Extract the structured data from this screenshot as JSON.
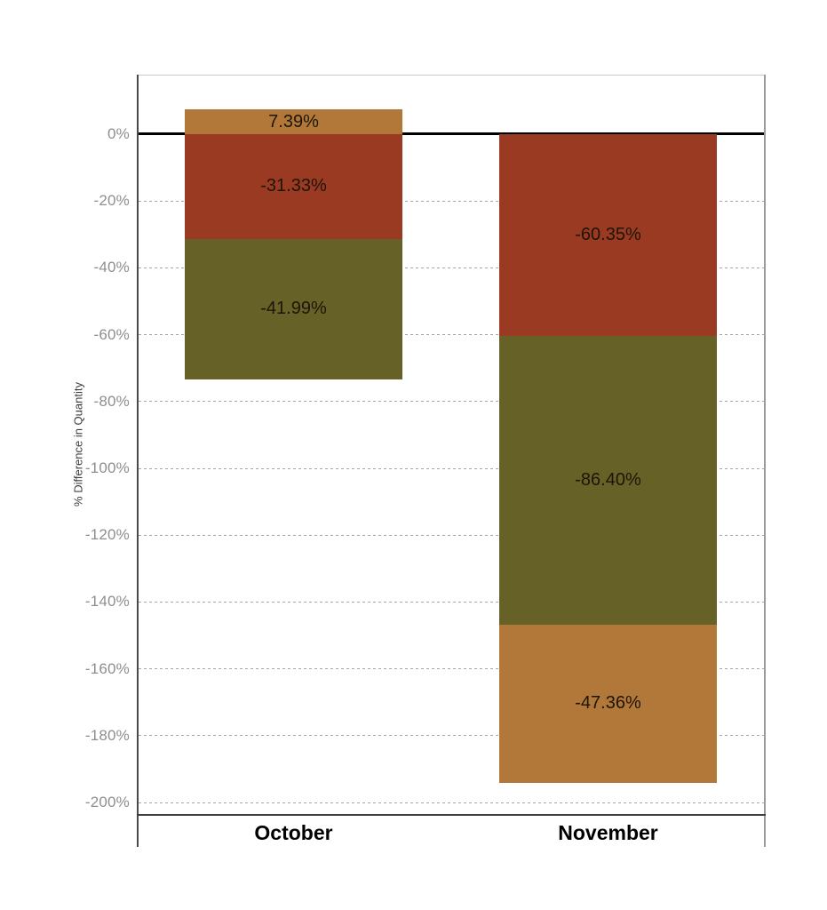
{
  "chart_data": {
    "type": "bar",
    "subtype": "stacked",
    "orientation": "vertical",
    "title": "",
    "xlabel": "",
    "ylabel": "% Difference in Quantity",
    "categories": [
      "October",
      "November"
    ],
    "bars": [
      {
        "category": "October",
        "segments": [
          {
            "label": "7.39%",
            "value": 7.39,
            "color_key": "orange"
          },
          {
            "label": "-31.33%",
            "value": -31.33,
            "color_key": "red"
          },
          {
            "label": "-41.99%",
            "value": -41.99,
            "color_key": "olive"
          }
        ]
      },
      {
        "category": "November",
        "segments": [
          {
            "label": "-60.35%",
            "value": -60.35,
            "color_key": "red"
          },
          {
            "label": "-86.40%",
            "value": -86.4,
            "color_key": "olive"
          },
          {
            "label": "-47.36%",
            "value": -47.36,
            "color_key": "orange"
          }
        ]
      }
    ],
    "y_ticks": [
      {
        "value": 0,
        "label": "0%"
      },
      {
        "value": -20,
        "label": "-20%"
      },
      {
        "value": -40,
        "label": "-40%"
      },
      {
        "value": -60,
        "label": "-60%"
      },
      {
        "value": -80,
        "label": "-80%"
      },
      {
        "value": -100,
        "label": "-100%"
      },
      {
        "value": -120,
        "label": "-120%"
      },
      {
        "value": -140,
        "label": "-140%"
      },
      {
        "value": -160,
        "label": "-160%"
      },
      {
        "value": -180,
        "label": "-180%"
      },
      {
        "value": -200,
        "label": "-200%"
      }
    ],
    "ylim": [
      -203,
      18
    ],
    "grid": "horizontal-dashed",
    "colors": {
      "orange": "#B1783A",
      "red": "#9A3A23",
      "olive": "#666127"
    },
    "zero_line_color": "#000000",
    "tick_label_color": "#8E8E8E"
  }
}
